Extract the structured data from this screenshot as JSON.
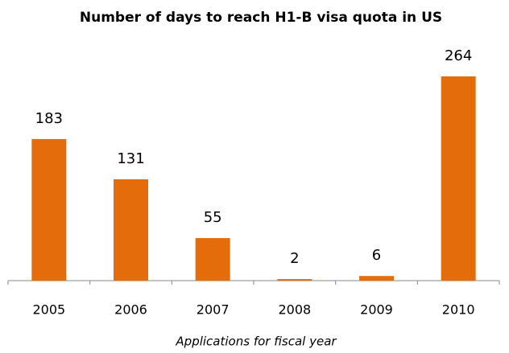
{
  "chart_data": {
    "type": "bar",
    "title": "Number of days to reach H1-B visa quota in US",
    "x_label": "Applications for fiscal year",
    "categories": [
      "2005",
      "2006",
      "2007",
      "2008",
      "2009",
      "2010"
    ],
    "values": [
      183,
      131,
      55,
      2,
      6,
      264
    ],
    "color": "#e46c0a"
  }
}
